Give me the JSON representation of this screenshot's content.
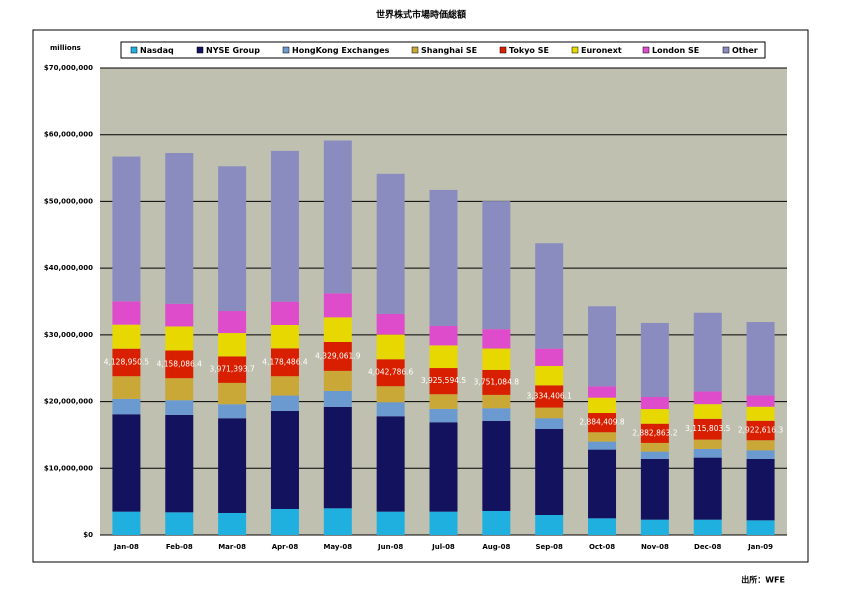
{
  "chart_data": {
    "type": "stacked_bar",
    "title": "世界株式市場時価総額",
    "y_label": "millions",
    "source": "出所：WFE",
    "categories": [
      "Jan-08",
      "Feb-08",
      "Mar-08",
      "Apr-08",
      "May-08",
      "Jun-08",
      "Jul-08",
      "Aug-08",
      "Sep-08",
      "Oct-08",
      "Nov-08",
      "Dec-08",
      "Jan-09"
    ],
    "series": [
      {
        "name": "Nasdaq",
        "color": "#1fb0e0",
        "values": [
          3500000,
          3400000,
          3300000,
          3900000,
          4000000,
          3500000,
          3500000,
          3600000,
          3000000,
          2500000,
          2300000,
          2300000,
          2200000
        ]
      },
      {
        "name": "NYSE Group",
        "color": "#12125e",
        "values": [
          14600000,
          14600000,
          14200000,
          14700000,
          15200000,
          14300000,
          13400000,
          13500000,
          12900000,
          10300000,
          9100000,
          9300000,
          9200000
        ]
      },
      {
        "name": "HongKong Exchanges",
        "color": "#6a9ad0",
        "values": [
          2300000,
          2200000,
          2100000,
          2300000,
          2400000,
          2100000,
          2000000,
          1900000,
          1600000,
          1200000,
          1100000,
          1300000,
          1300000
        ]
      },
      {
        "name": "Shanghai SE",
        "color": "#c9a838",
        "values": [
          3400000,
          3300000,
          3200000,
          2900000,
          3000000,
          2400000,
          2200000,
          2000000,
          1600000,
          1400000,
          1300000,
          1400000,
          1500000
        ]
      },
      {
        "name": "Tokyo SE",
        "color": "#d82000",
        "values": [
          4128950.5,
          4158086.4,
          3971393.7,
          4178486.4,
          4329061.9,
          4042786.6,
          3925594.5,
          3751084.8,
          3334406.1,
          2884409.8,
          2882863.2,
          3115803.5,
          2922616.3
        ],
        "value_labels": [
          "4,128,950.5",
          "4,158,086.4",
          "3,971,393.7",
          "4,178,486.4",
          "4,329,061.9",
          "4,042,786.6",
          "3,925,594.5",
          "3,751,084.8",
          "3,334,406.1",
          "2,884,409.8",
          "2,882,863.2",
          "3,115,803.5",
          "2,922,616.3"
        ]
      },
      {
        "name": "Euronext",
        "color": "#e6d800",
        "values": [
          3600000,
          3600000,
          3500000,
          3500000,
          3700000,
          3700000,
          3400000,
          3200000,
          2900000,
          2300000,
          2200000,
          2200000,
          2100000
        ]
      },
      {
        "name": "London SE",
        "color": "#de4ccc",
        "values": [
          3500000,
          3400000,
          3300000,
          3500000,
          3600000,
          3100000,
          2900000,
          2900000,
          2600000,
          1700000,
          1800000,
          1900000,
          1700000
        ]
      },
      {
        "name": "Other",
        "color": "#8a8cc0",
        "values": [
          21700000,
          22600000,
          21700000,
          22600000,
          22900000,
          21000000,
          20400000,
          19200000,
          15800000,
          12000000,
          11100000,
          11800000,
          11000000
        ]
      }
    ],
    "ylim": [
      0,
      70000000
    ],
    "yticks": [
      {
        "value": 0,
        "label": "$0"
      },
      {
        "value": 10000000,
        "label": "$10,000,000"
      },
      {
        "value": 20000000,
        "label": "$20,000,000"
      },
      {
        "value": 30000000,
        "label": "$30,000,000"
      },
      {
        "value": 40000000,
        "label": "$40,000,000"
      },
      {
        "value": 50000000,
        "label": "$50,000,000"
      },
      {
        "value": 60000000,
        "label": "$60,000,000"
      },
      {
        "value": 70000000,
        "label": "$70,000,000"
      }
    ],
    "grid": true
  }
}
